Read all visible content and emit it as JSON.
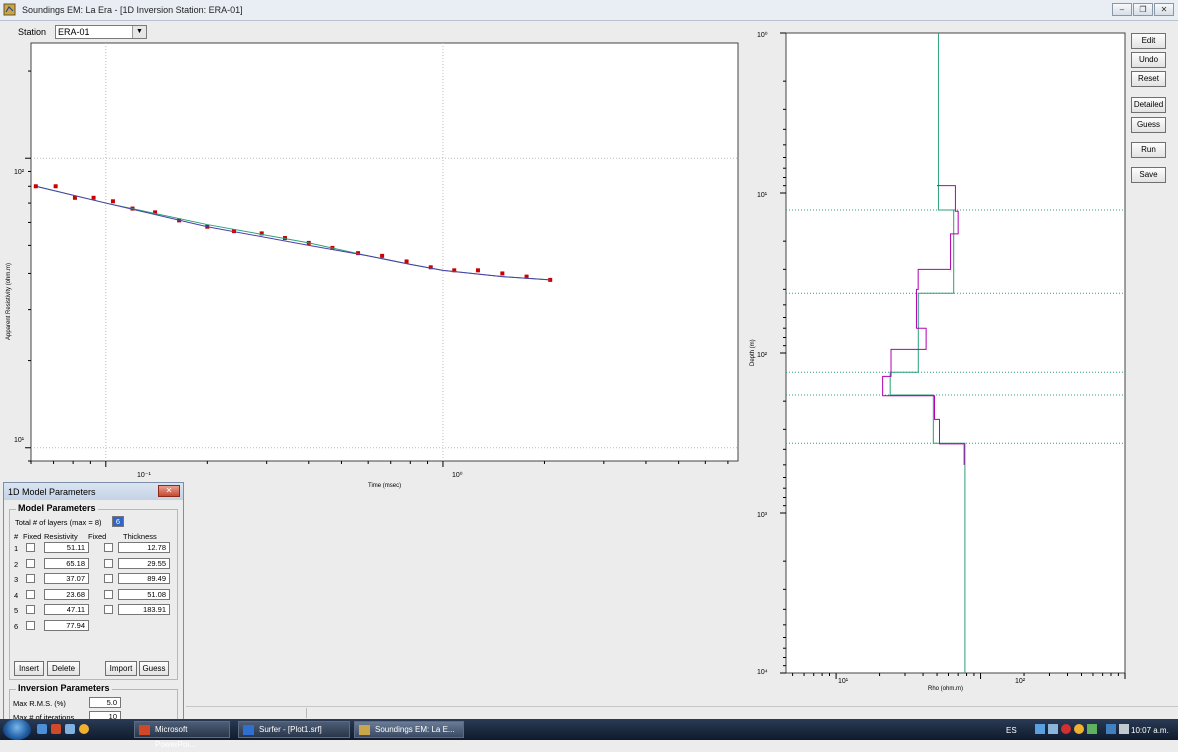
{
  "window": {
    "title": "Soundings  EM: La Era - [1D Inversion Station: ERA-01]"
  },
  "station": {
    "label": "Station",
    "value": "ERA-01"
  },
  "side_buttons": [
    "Edit",
    "Undo",
    "Reset",
    "Detailed",
    "Guess",
    "Run",
    "Save"
  ],
  "left_plot": {
    "ylabel": "Apparent Resistivity (ohm.m)",
    "xlabel": "Time (msec)",
    "xtick_labels": [
      "10⁻¹",
      "10⁰"
    ],
    "ytick_labels": [
      "10²",
      "10¹"
    ]
  },
  "right_plot": {
    "ylabel": "Depth (m)",
    "xlabel": "Rho (ohm.m)",
    "xtick_labels": [
      "10¹",
      "10²"
    ],
    "ytick_labels": [
      "10⁰",
      "10¹",
      "10²",
      "10³",
      "10⁴"
    ]
  },
  "chart_data": [
    {
      "type": "scatter",
      "xlabel": "Time (msec)",
      "ylabel": "Apparent Resistivity (ohm.m)",
      "x_scale": "log",
      "y_scale": "log",
      "xlim": [
        0.06,
        7.5
      ],
      "ylim": [
        9,
        250
      ],
      "series": [
        {
          "values_x": [
            0.062,
            0.071,
            0.081,
            0.092,
            0.105,
            0.12,
            0.14,
            0.165,
            0.2,
            0.24,
            0.29,
            0.34,
            0.4,
            0.47,
            0.56,
            0.66,
            0.78,
            0.92,
            1.08,
            1.27,
            1.5,
            1.77,
            2.08
          ],
          "values_y": [
            80,
            80,
            73,
            73,
            71,
            67,
            65,
            61,
            58,
            56,
            55,
            53,
            51,
            49,
            47,
            46,
            44,
            42,
            41,
            41,
            40,
            39,
            38
          ],
          "color": "#cc0000"
        },
        {
          "values_x": [
            0.062,
            0.1,
            0.2,
            0.4,
            0.6,
            0.8,
            1.0,
            1.5,
            2.08
          ],
          "values_y": [
            80,
            70,
            59,
            51,
            46,
            43,
            41,
            39,
            38
          ],
          "color": "#2aa07a"
        },
        {
          "values_x": [
            0.062,
            0.1,
            0.2,
            0.4,
            0.6,
            0.8,
            1.0,
            1.5,
            2.08
          ],
          "values_y": [
            80,
            70,
            58,
            50,
            46,
            43,
            41,
            39,
            38
          ],
          "color": "#4b3fa7"
        }
      ]
    },
    {
      "type": "line",
      "xlabel": "Rho (ohm.m)",
      "ylabel": "Depth (m)",
      "x_scale": "log",
      "y_scale": "log",
      "xlim": [
        4.5,
        1000
      ],
      "ylim": [
        1,
        10000
      ],
      "series": [
        {
          "color": "#2aa07a",
          "rho": [
            51.11,
            65.18,
            37.07,
            23.68,
            47.11,
            77.94
          ],
          "boundaries": [
            12.78,
            42.33,
            131.82,
            182.9,
            366.81
          ]
        },
        {
          "color": "#b000b0",
          "rho": [
            50,
            67,
            70,
            62,
            37,
            36,
            42,
            24,
            21,
            48,
            52,
            77
          ],
          "boundaries": [
            9,
            13,
            18,
            30,
            40,
            70,
            95,
            140,
            185,
            260,
            370,
            500
          ]
        }
      ]
    }
  ],
  "model_panel": {
    "title": "1D Model Parameters",
    "group_title": "Model Parameters",
    "total_label": "Total # of  layers (max = 8)",
    "total_value": "6",
    "col_num": "#",
    "col_fixed1": "Fixed",
    "col_res": "Resistivity",
    "col_fixed2": "Fixed",
    "col_thick": "Thickness",
    "rows": [
      {
        "n": "1",
        "res": "51.11",
        "thick": "12.78"
      },
      {
        "n": "2",
        "res": "65.18",
        "thick": "29.55"
      },
      {
        "n": "3",
        "res": "37.07",
        "thick": "89.49"
      },
      {
        "n": "4",
        "res": "23.68",
        "thick": "51.08"
      },
      {
        "n": "5",
        "res": "47.11",
        "thick": "183.91"
      },
      {
        "n": "6",
        "res": "77.94",
        "thick": ""
      }
    ],
    "buttons": {
      "insert": "Insert",
      "delete": "Delete",
      "import": "Import",
      "guess": "Guess"
    },
    "inv_title": "Inversion Parameters",
    "rms_label": "Max R.M.S. (%)",
    "rms_value": "5.0",
    "iter_label": "Max # of iterations",
    "iter_value": "10"
  },
  "taskbar": {
    "items": [
      "Microsoft PowerPoi...",
      "Surfer - [Plot1.srf]",
      "Soundings  EM: La E..."
    ],
    "lang": "ES",
    "clock": "10:07 a.m."
  }
}
